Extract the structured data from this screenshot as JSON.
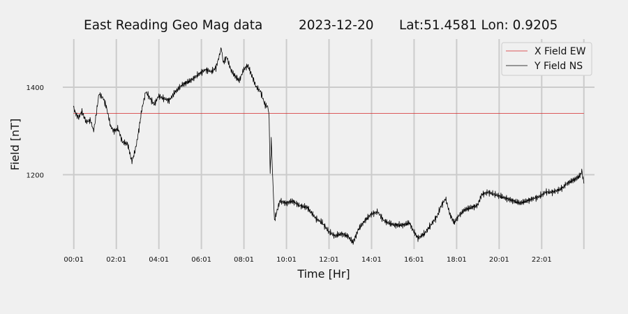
{
  "chart_data": {
    "type": "line",
    "title": {
      "name": "East Reading Geo Mag data",
      "date": "2023-12-20",
      "location": "Lat:51.4581  Lon: 0.9205"
    },
    "xlabel": "Time  [Hr]",
    "ylabel": "Field  [nT]",
    "x_unit": "hours",
    "xlim": [
      -0.5,
      24.5
    ],
    "ylim": [
      1030,
      1510
    ],
    "x_ticks": [
      {
        "x": 0.0167,
        "label": "00:01"
      },
      {
        "x": 2.0167,
        "label": "02:01"
      },
      {
        "x": 4.0167,
        "label": "04:01"
      },
      {
        "x": 6.0167,
        "label": "06:01"
      },
      {
        "x": 8.0167,
        "label": "08:01"
      },
      {
        "x": 10.0167,
        "label": "10:01"
      },
      {
        "x": 12.0167,
        "label": "12:01"
      },
      {
        "x": 14.0167,
        "label": "14:01"
      },
      {
        "x": 16.0167,
        "label": "16:01"
      },
      {
        "x": 18.0167,
        "label": "18:01"
      },
      {
        "x": 20.0167,
        "label": "20:01"
      },
      {
        "x": 22.0167,
        "label": "22:01"
      }
    ],
    "y_ticks": [
      {
        "y": 1200,
        "label": "1200"
      },
      {
        "y": 1400,
        "label": "1400"
      }
    ],
    "x_grid_extra": [
      24.0
    ],
    "grid": true,
    "legend_position": "top-right",
    "series": [
      {
        "name": "X Field EW",
        "color": "#d62728",
        "x": [
          0.0,
          24.0
        ],
        "y": [
          1340,
          1340
        ]
      },
      {
        "name": "Y Field NS",
        "color": "#000000",
        "x": [
          0.0,
          0.1,
          0.25,
          0.4,
          0.6,
          0.8,
          0.95,
          1.05,
          1.2,
          1.4,
          1.55,
          1.75,
          1.9,
          2.1,
          2.3,
          2.55,
          2.75,
          2.9,
          3.0,
          3.1,
          3.2,
          3.4,
          3.6,
          3.8,
          4.0,
          4.2,
          4.5,
          4.8,
          5.1,
          5.5,
          5.9,
          6.2,
          6.5,
          6.7,
          6.85,
          6.95,
          7.05,
          7.2,
          7.4,
          7.6,
          7.8,
          8.0,
          8.2,
          8.4,
          8.6,
          8.8,
          9.0,
          9.15,
          9.2,
          9.25,
          9.3,
          9.35,
          9.45,
          9.7,
          10.0,
          10.3,
          10.6,
          11.0,
          11.4,
          11.7,
          12.0,
          12.3,
          12.6,
          12.9,
          13.15,
          13.4,
          13.7,
          14.0,
          14.3,
          14.6,
          14.8,
          15.1,
          15.5,
          15.8,
          16.0,
          16.2,
          16.5,
          16.8,
          17.1,
          17.3,
          17.5,
          17.7,
          17.9,
          18.1,
          18.4,
          18.7,
          19.0,
          19.2,
          19.5,
          19.8,
          20.1,
          20.4,
          20.7,
          21.0,
          21.3,
          21.6,
          21.9,
          22.2,
          22.5,
          22.8,
          23.0,
          23.2,
          23.4,
          23.6,
          23.75,
          23.85,
          23.9,
          24.0
        ],
        "y": [
          1355,
          1340,
          1330,
          1345,
          1320,
          1325,
          1300,
          1330,
          1385,
          1375,
          1355,
          1310,
          1300,
          1305,
          1275,
          1270,
          1230,
          1255,
          1280,
          1310,
          1345,
          1390,
          1375,
          1360,
          1380,
          1375,
          1370,
          1390,
          1405,
          1415,
          1430,
          1440,
          1435,
          1445,
          1470,
          1490,
          1455,
          1470,
          1440,
          1425,
          1415,
          1440,
          1450,
          1425,
          1400,
          1390,
          1360,
          1355,
          1330,
          1200,
          1280,
          1220,
          1095,
          1140,
          1135,
          1140,
          1130,
          1125,
          1100,
          1090,
          1070,
          1060,
          1065,
          1060,
          1045,
          1075,
          1095,
          1110,
          1115,
          1095,
          1090,
          1085,
          1085,
          1090,
          1070,
          1055,
          1065,
          1085,
          1105,
          1130,
          1145,
          1110,
          1090,
          1105,
          1120,
          1125,
          1130,
          1155,
          1160,
          1155,
          1150,
          1145,
          1140,
          1135,
          1140,
          1145,
          1150,
          1160,
          1160,
          1165,
          1170,
          1180,
          1185,
          1190,
          1195,
          1200,
          1210,
          1180
        ]
      }
    ]
  }
}
